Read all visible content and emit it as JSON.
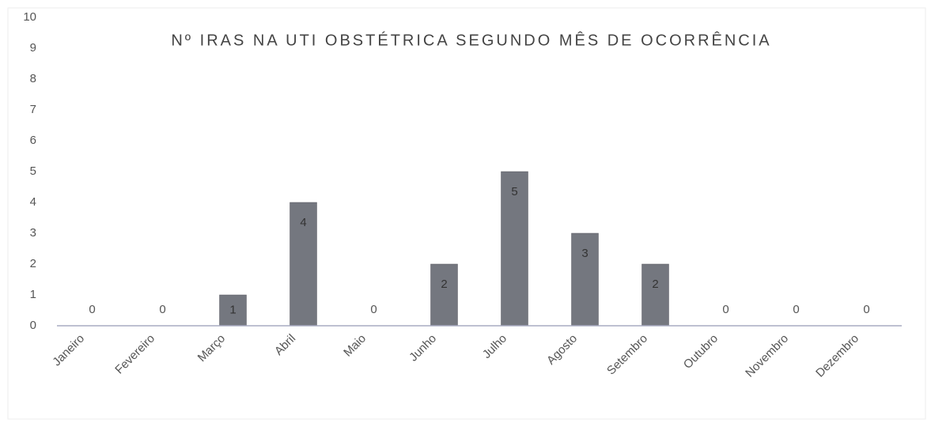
{
  "chart_data": {
    "type": "bar",
    "title": "Nº IRAS NA UTI OBSTÉTRICA SEGUNDO MÊS DE OCORRÊNCIA",
    "categories": [
      "Janeiro",
      "Fevereiro",
      "Março",
      "Abril",
      "Maio",
      "Junho",
      "Julho",
      "Agosto",
      "Setembro",
      "Outubro",
      "Novembro",
      "Dezembro"
    ],
    "values": [
      0,
      0,
      1,
      4,
      0,
      2,
      5,
      3,
      2,
      0,
      0,
      0
    ],
    "color": "#74777f",
    "ylim": [
      0,
      10
    ],
    "yticks": [
      0,
      1,
      2,
      3,
      4,
      5,
      6,
      7,
      8,
      9,
      10
    ],
    "grid": false
  }
}
